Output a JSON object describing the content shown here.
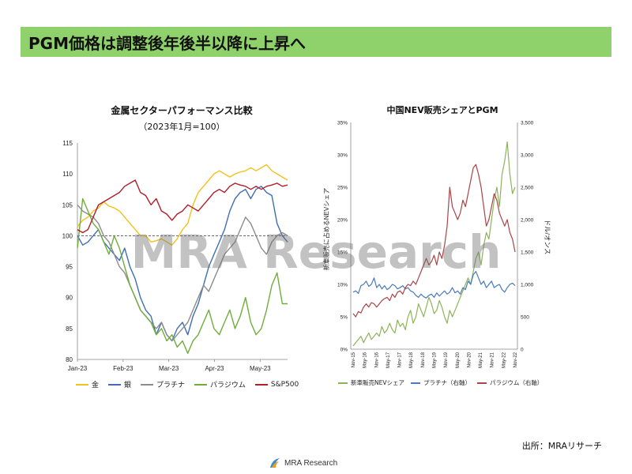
{
  "header": {
    "title": "PGM価格は調整後年後半以降に上昇へ"
  },
  "watermark": "MRA Research",
  "source": "出所：MRAリサーチ",
  "logo": {
    "text": "MRA Research"
  },
  "colors": {
    "title_bg": "#8fd16a",
    "gold": "#f2c11b",
    "silver": "#3f6db5",
    "platinum": "#8c8c8c",
    "palladium": "#6fad3a",
    "sp500": "#b01e2a",
    "nev": "#8db35a",
    "pt2": "#4a7ab8",
    "pd2": "#a94448"
  },
  "chart_data": [
    {
      "type": "line",
      "title": "金属セクターパフォーマンス比較",
      "subtitle": "（2023年1月=100）",
      "xticks": [
        "Jan-23",
        "Feb-23",
        "Mar-23",
        "Apr-23",
        "May-23"
      ],
      "yticks": [
        "80",
        "85",
        "90",
        "95",
        "100",
        "105",
        "110",
        "115"
      ],
      "ylim": [
        80,
        115
      ],
      "reference_line": 100,
      "legend_position": "bottom",
      "series": [
        {
          "name": "金",
          "color": "#f2c11b",
          "values": [
            101.5,
            102.5,
            103,
            104,
            104.5,
            105.5,
            104.8,
            104.5,
            104,
            103,
            102,
            101,
            100,
            100,
            99,
            99.2,
            99.5,
            99,
            98.5,
            99.5,
            101,
            102,
            105,
            107,
            108,
            109,
            110,
            110.5,
            110,
            109.5,
            110,
            110.3,
            110.5,
            111,
            110.5,
            111,
            111.5,
            110.5,
            110,
            109.5,
            109
          ]
        },
        {
          "name": "銀",
          "color": "#3f6db5",
          "values": [
            100,
            98.5,
            99,
            100,
            101,
            99,
            98,
            97,
            96,
            98,
            95,
            93,
            90,
            88,
            87,
            84,
            86,
            84,
            83,
            85,
            86,
            84,
            87,
            89,
            92,
            95,
            97,
            99,
            101,
            104,
            106,
            107,
            107.5,
            106,
            107.5,
            108,
            107,
            106.5,
            102,
            100,
            99
          ]
        },
        {
          "name": "プラチナ",
          "color": "#8c8c8c",
          "values": [
            105,
            104,
            103.5,
            103,
            102,
            100,
            99,
            97,
            95,
            94,
            92,
            90,
            88,
            87,
            86,
            85,
            86,
            84,
            83,
            84,
            85,
            86,
            88,
            90,
            92,
            91,
            93,
            95,
            97,
            98,
            99,
            101,
            103,
            102,
            100,
            98,
            97,
            99,
            100,
            100.5,
            100
          ]
        },
        {
          "name": "パラジウム",
          "color": "#6fad3a",
          "values": [
            98,
            106,
            104,
            102,
            101,
            99,
            97,
            100,
            98,
            95,
            92,
            90,
            88,
            87,
            86,
            84,
            85,
            83,
            84,
            82,
            83,
            81,
            83,
            84,
            86,
            88,
            85,
            84,
            86,
            88,
            85,
            87,
            90,
            86,
            84,
            85,
            88,
            92,
            94,
            89,
            89
          ]
        },
        {
          "name": "S&P500",
          "color": "#b01e2a",
          "values": [
            101,
            100.5,
            101,
            103,
            105,
            105.5,
            106,
            106.5,
            107,
            108,
            108.5,
            109,
            107,
            106.5,
            105,
            106,
            104,
            103.5,
            102.5,
            103.5,
            104,
            105,
            104.5,
            104,
            105,
            106,
            107,
            107.5,
            107,
            108,
            108.5,
            108.2,
            108,
            107.5,
            108,
            107.5,
            108,
            108.2,
            108.5,
            108,
            108.2
          ]
        }
      ]
    },
    {
      "type": "line",
      "title": "中国NEV販売シェアとPGM",
      "ylabel": "新車販売に占めるNEVシェア",
      "y2label": "ドル/オンス",
      "xticks": [
        "Nov-15",
        "May-16",
        "Nov-16",
        "May-17",
        "Nov-17",
        "May-18",
        "Nov-18",
        "May-19",
        "Nov-19",
        "May-20",
        "Nov-20",
        "May-21",
        "Nov-21",
        "May-22",
        "Nov-22"
      ],
      "yticks": [
        "0%",
        "5%",
        "10%",
        "15%",
        "20%",
        "25%",
        "30%",
        "35%"
      ],
      "y2ticks": [
        "0",
        "500",
        "1,000",
        "1,500",
        "2,000",
        "2,500",
        "3,000",
        "3,500"
      ],
      "ylim": [
        0,
        35
      ],
      "y2lim": [
        0,
        3500
      ],
      "legend_position": "bottom",
      "series": [
        {
          "name": "新車販売NEVシェア",
          "axis": "left",
          "color": "#8db35a",
          "values": [
            0.5,
            1,
            1.5,
            2,
            1,
            1.8,
            2.5,
            1.5,
            2,
            2.5,
            2,
            3.5,
            2.5,
            3,
            4,
            3,
            2.5,
            4.5,
            3.5,
            4,
            3,
            5,
            6,
            4,
            5,
            7,
            6,
            5,
            6.5,
            8,
            7,
            5.5,
            6,
            7.5,
            6.5,
            5,
            4,
            6,
            5,
            6,
            7,
            8,
            9,
            10,
            11,
            10,
            12,
            14,
            15,
            13,
            16,
            18,
            17,
            20,
            23,
            25,
            22,
            27,
            29,
            32,
            27,
            24,
            25
          ]
        },
        {
          "name": "プラチナ（右軸）",
          "axis": "right",
          "color": "#4a7ab8",
          "values": [
            880,
            900,
            860,
            980,
            1000,
            1050,
            970,
            1000,
            1100,
            950,
            1000,
            930,
            980,
            920,
            950,
            1000,
            980,
            930,
            950,
            980,
            930,
            950,
            900,
            880,
            830,
            800,
            850,
            810,
            790,
            830,
            850,
            800,
            870,
            820,
            860,
            900,
            850,
            880,
            950,
            870,
            900,
            850,
            950,
            920,
            1050,
            1000,
            1150,
            1200,
            1100,
            1000,
            1050,
            950,
            1000,
            1050,
            950,
            980,
            1000,
            920,
            880,
            950,
            1000,
            1020,
            980
          ]
        },
        {
          "name": "パラジウム（右軸）",
          "axis": "right",
          "color": "#a94448",
          "values": [
            550,
            500,
            580,
            560,
            650,
            700,
            650,
            720,
            700,
            650,
            700,
            750,
            780,
            800,
            750,
            850,
            800,
            880,
            900,
            850,
            950,
            1000,
            980,
            1050,
            1000,
            1100,
            1200,
            1300,
            1400,
            1300,
            1350,
            1450,
            1300,
            1500,
            1400,
            1600,
            1900,
            2500,
            2200,
            2100,
            2000,
            2100,
            2300,
            2200,
            2400,
            2600,
            2800,
            2850,
            2700,
            2500,
            2200,
            1900,
            2000,
            2200,
            2400,
            2300,
            2100,
            2000,
            1900,
            2000,
            1800,
            1700,
            1500
          ]
        }
      ]
    }
  ]
}
